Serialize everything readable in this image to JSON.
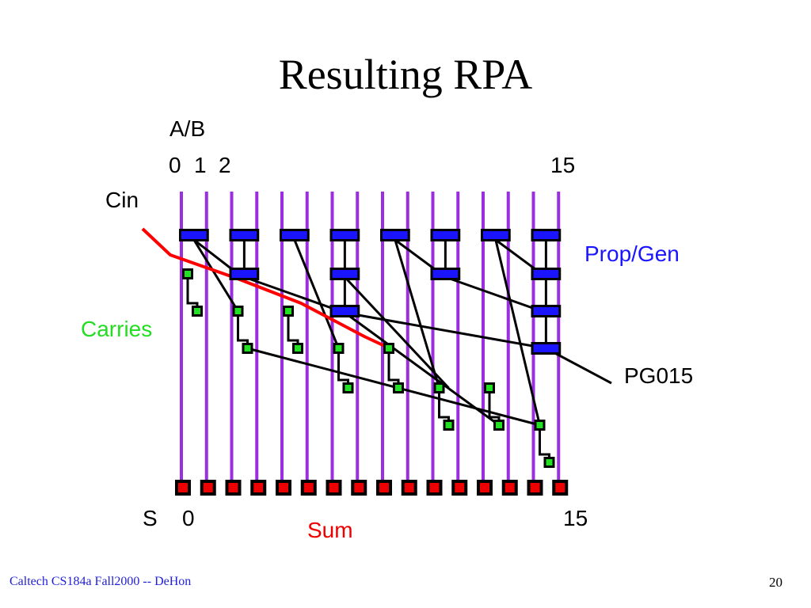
{
  "slide": {
    "title": "Resulting RPA",
    "footer": "Caltech CS184a Fall2000 -- DeHon",
    "page_number": "20"
  },
  "diagram": {
    "labels": {
      "inputs": "A/B",
      "bit0": "0",
      "bit1": "1",
      "bit2": "2",
      "bit15_top": "15",
      "cin": "Cin",
      "prop_gen": "Prop/Gen",
      "carries": "Carries",
      "pg015": "PG015",
      "s": "S",
      "s0": "0",
      "s15": "15",
      "sum": "Sum"
    },
    "colors": {
      "wire": "#9b2fe0",
      "prop_gen_block": "#1a14ff",
      "carry_block": "#22e022",
      "sum_block": "#ee0000",
      "carry_chain": "#ff0000",
      "prop_gen_label": "#1a14ff",
      "carries_label": "#22dd22",
      "sum_label": "#ee0000",
      "footer": "#1f1fd8"
    }
  }
}
